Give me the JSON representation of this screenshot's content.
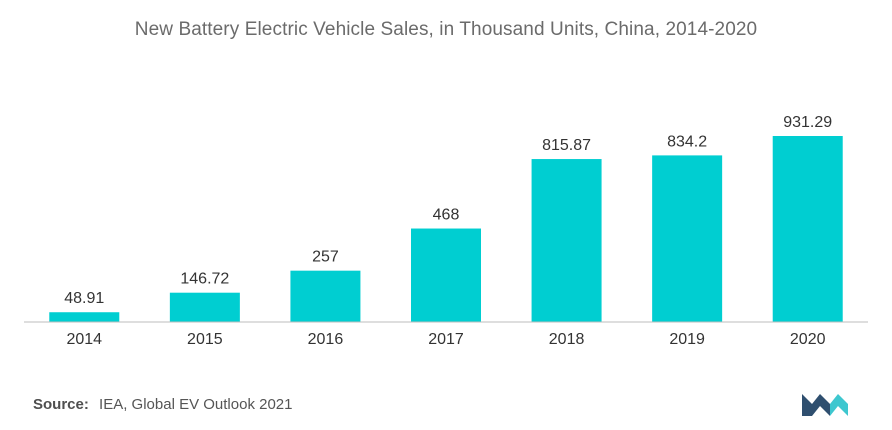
{
  "title": "New Battery Electric Vehicle Sales, in Thousand Units, China, 2014-2020",
  "source": {
    "prefix": "Source:",
    "text": "IEA, Global EV Outlook 2021"
  },
  "colors": {
    "bar": "#00CED1",
    "axis": "#bdbdbd",
    "logo_dark": "#2f4f6f",
    "logo_light": "#3ec7cf"
  },
  "logo": {
    "icon": "mordor-intelligence-logo"
  },
  "chart_data": {
    "type": "bar",
    "title": "New Battery Electric Vehicle Sales, in Thousand Units, China, 2014-2020",
    "xlabel": "",
    "ylabel": "",
    "categories": [
      "2014",
      "2015",
      "2016",
      "2017",
      "2018",
      "2019",
      "2020"
    ],
    "values": [
      48.91,
      146.72,
      257,
      468,
      815.87,
      834.2,
      931.29
    ],
    "value_labels": [
      "48.91",
      "146.72",
      "257",
      "468",
      "815.87",
      "834.2",
      "931.29"
    ],
    "ylim": [
      0,
      931.29
    ],
    "grid": false,
    "legend": "none"
  }
}
